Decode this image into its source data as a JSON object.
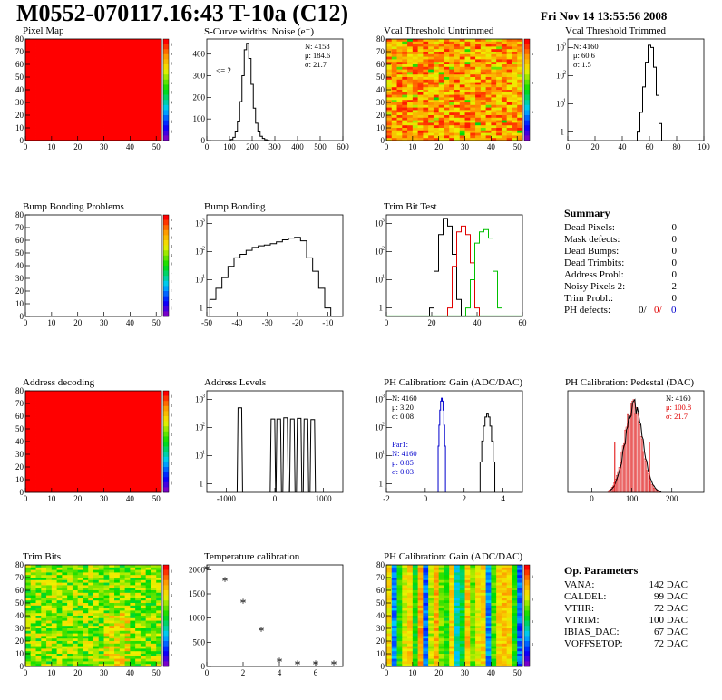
{
  "header": {
    "title": "M0552-070117.16:43 T-10a (C12)",
    "date": "Fri Nov 14 13:55:56 2008"
  },
  "colors": {
    "black": "#000000",
    "red": "#e00000",
    "green": "#00c000",
    "blue": "#0000cc"
  },
  "chart_data": [
    {
      "id": "pixel-map",
      "type": "heatmap",
      "title": "Pixel Map",
      "xlim": [
        0,
        52
      ],
      "ylim": [
        0,
        80
      ],
      "xticks": [
        0,
        10,
        20,
        30,
        40,
        50
      ],
      "yticks": [
        0,
        10,
        20,
        30,
        40,
        50,
        60,
        70,
        80
      ],
      "fill": "uniform-max",
      "zlim": [
        0,
        10
      ],
      "zticks": [
        "1",
        "2",
        "3",
        "4",
        "5",
        "6",
        "7",
        "8",
        "9",
        "10"
      ]
    },
    {
      "id": "scurve-noise",
      "type": "line",
      "title": "S-Curve widths: Noise (e⁻)",
      "xlim": [
        0,
        600
      ],
      "ylim": [
        0,
        470
      ],
      "xticks": [
        0,
        100,
        200,
        300,
        400,
        500,
        600
      ],
      "yticks": [
        0,
        100,
        200,
        300,
        400
      ],
      "x": [
        110,
        120,
        130,
        140,
        150,
        160,
        170,
        180,
        190,
        200,
        210,
        220,
        230,
        240,
        250,
        260,
        270
      ],
      "y": [
        5,
        15,
        40,
        90,
        180,
        300,
        420,
        450,
        380,
        260,
        150,
        80,
        40,
        20,
        10,
        4,
        1
      ],
      "stats": {
        "entries": "N: 4158",
        "mean": "μ: 184.6",
        "sigma": "σ: 21.7"
      },
      "annotation": "<= 2"
    },
    {
      "id": "vcal-untrimmed",
      "type": "heatmap",
      "title": "Vcal Threshold Untrimmed",
      "xlim": [
        0,
        52
      ],
      "ylim": [
        0,
        80
      ],
      "xticks": [
        0,
        10,
        20,
        30,
        40,
        50
      ],
      "yticks": [
        0,
        10,
        20,
        30,
        40,
        50,
        60,
        70,
        80
      ],
      "fill": "noisy-high",
      "zlim": [
        0,
        130
      ],
      "zticks": [
        "60",
        "80",
        "100"
      ]
    },
    {
      "id": "vcal-trimmed",
      "type": "line",
      "title": "Vcal Threshold Trimmed",
      "xlim": [
        0,
        100
      ],
      "ylim": [
        0.5,
        2000
      ],
      "log_y": true,
      "xticks": [
        0,
        20,
        40,
        60,
        80,
        100
      ],
      "x": [
        52,
        54,
        56,
        58,
        60,
        62,
        64,
        66,
        68
      ],
      "y": [
        1,
        5,
        40,
        300,
        1200,
        1000,
        200,
        20,
        2
      ],
      "stats": {
        "entries": "N: 4160",
        "mean": "μ: 60.6",
        "sigma": "σ:  1.5"
      }
    },
    {
      "id": "bump-problems",
      "type": "heatmap",
      "title": "Bump Bonding Problems",
      "xlim": [
        0,
        52
      ],
      "ylim": [
        0,
        80
      ],
      "xticks": [
        0,
        10,
        20,
        30,
        40,
        50
      ],
      "yticks": [
        0,
        10,
        20,
        30,
        40,
        50,
        60,
        70,
        80
      ],
      "fill": "empty",
      "zlim": [
        -5,
        5
      ],
      "zticks": [
        "-5",
        "-4",
        "-3",
        "-2",
        "-1",
        "0",
        "1",
        "2",
        "3",
        "4",
        "5"
      ]
    },
    {
      "id": "bump-bonding",
      "type": "line",
      "title": "Bump Bonding",
      "xlim": [
        -50,
        -5
      ],
      "ylim": [
        0.5,
        2000
      ],
      "log_y": true,
      "xticks": [
        -50,
        -40,
        -30,
        -20,
        -10
      ],
      "x": [
        -48,
        -46,
        -44,
        -42,
        -40,
        -38,
        -36,
        -34,
        -32,
        -30,
        -28,
        -26,
        -24,
        -22,
        -20,
        -18,
        -16,
        -14,
        -12,
        -10
      ],
      "y": [
        2,
        5,
        12,
        30,
        60,
        80,
        110,
        140,
        160,
        170,
        190,
        220,
        260,
        300,
        320,
        240,
        60,
        20,
        5,
        1
      ]
    },
    {
      "id": "trim-bit-test",
      "type": "line",
      "title": "Trim Bit Test",
      "xlim": [
        0,
        60
      ],
      "ylim": [
        0.5,
        2000
      ],
      "log_y": true,
      "xticks": [
        0,
        20,
        40,
        60
      ],
      "series": [
        {
          "color": "black",
          "x": [
            20,
            22,
            24,
            26,
            28,
            30,
            32
          ],
          "y": [
            1,
            20,
            400,
            1500,
            800,
            80,
            2
          ]
        },
        {
          "color": "red",
          "x": [
            28,
            30,
            32,
            34,
            36,
            38,
            40
          ],
          "y": [
            1,
            30,
            500,
            800,
            400,
            40,
            1
          ]
        },
        {
          "color": "green",
          "x": [
            36,
            38,
            40,
            42,
            44,
            46,
            48,
            50
          ],
          "y": [
            1,
            10,
            200,
            500,
            600,
            300,
            20,
            1
          ]
        }
      ]
    },
    {
      "id": "address-decoding",
      "type": "heatmap",
      "title": "Address decoding",
      "xlim": [
        0,
        52
      ],
      "ylim": [
        0,
        80
      ],
      "xticks": [
        0,
        10,
        20,
        30,
        40,
        50
      ],
      "yticks": [
        0,
        10,
        20,
        30,
        40,
        50,
        60,
        70,
        80
      ],
      "fill": "uniform-max",
      "zlim": [
        0,
        1
      ],
      "zticks": [
        "0.1",
        "0.2",
        "0.3",
        "0.4",
        "0.5",
        "0.6",
        "0.7",
        "0.8",
        "0.9",
        "1"
      ]
    },
    {
      "id": "address-levels",
      "type": "line",
      "title": "Address Levels",
      "xlim": [
        -1400,
        1400
      ],
      "ylim": [
        0.5,
        2000
      ],
      "log_y": true,
      "xticks": [
        -1000,
        0,
        1000
      ],
      "peaks_x": [
        -720,
        -40,
        80,
        220,
        360,
        500,
        640,
        780
      ],
      "peaks_y": [
        500,
        200,
        200,
        220,
        200,
        210,
        200,
        190
      ]
    },
    {
      "id": "ph-gain",
      "type": "line",
      "title": "PH Calibration: Gain (ADC/DAC)",
      "xlim": [
        -2,
        5
      ],
      "ylim": [
        0.5,
        2000
      ],
      "log_y": true,
      "xticks": [
        -2,
        0,
        2,
        4
      ],
      "series": [
        {
          "color": "blue",
          "center": 0.85,
          "width": 0.06,
          "peak": 1100
        },
        {
          "color": "black",
          "center": 3.2,
          "width": 0.12,
          "peak": 300
        }
      ],
      "stats": {
        "entries": "N: 4160",
        "mean": "μ: 3.20",
        "sigma": "σ: 0.08"
      },
      "stats2": {
        "title": "Par1:",
        "entries": "N: 4160",
        "mean": "μ: 0.85",
        "sigma": "σ: 0.03"
      }
    },
    {
      "id": "ph-pedestal",
      "type": "line",
      "title": "PH Calibration: Pedestal (DAC)",
      "xlim": [
        -60,
        280
      ],
      "ylim": [
        0,
        1
      ],
      "xticks": [
        0,
        100,
        200
      ],
      "center": 100.8,
      "sigma_value": 21.7,
      "stats": {
        "entries": "N: 4160",
        "mean": "μ: 100.8",
        "sigma": "σ: 21.7"
      }
    },
    {
      "id": "trim-bits",
      "type": "heatmap",
      "title": "Trim Bits",
      "xlim": [
        0,
        52
      ],
      "ylim": [
        0,
        80
      ],
      "xticks": [
        0,
        10,
        20,
        30,
        40,
        50
      ],
      "yticks": [
        0,
        10,
        20,
        30,
        40,
        50,
        60,
        70,
        80
      ],
      "fill": "noisy-mid",
      "zlim": [
        0,
        16
      ],
      "zticks": [
        "2",
        "4",
        "6",
        "8",
        "10",
        "12",
        "14",
        "16"
      ]
    },
    {
      "id": "temperature",
      "type": "scatter",
      "title": "Temperature calibration",
      "xlim": [
        0,
        7.5
      ],
      "ylim": [
        0,
        2100
      ],
      "xticks": [
        0,
        2,
        4,
        6
      ],
      "yticks": [
        0,
        500,
        1000,
        1500,
        2000
      ],
      "x": [
        0,
        1,
        2,
        3,
        4,
        5,
        6,
        7
      ],
      "y": [
        2000,
        1750,
        1300,
        720,
        80,
        30,
        30,
        30
      ]
    },
    {
      "id": "ph-gain-map",
      "type": "heatmap",
      "title": "PH Calibration: Gain (ADC/DAC)",
      "xlim": [
        0,
        52
      ],
      "ylim": [
        0,
        80
      ],
      "xticks": [
        0,
        10,
        20,
        30,
        40,
        50
      ],
      "yticks": [
        0,
        10,
        20,
        30,
        40,
        50,
        60,
        70,
        80
      ],
      "fill": "columns",
      "zlim": [
        2.7,
        3.6
      ],
      "zticks": [
        "2.8",
        "3",
        "3.2",
        "3.4"
      ]
    }
  ],
  "summary": {
    "title": "Summary",
    "rows": [
      {
        "label": "Dead Pixels:",
        "value": "0"
      },
      {
        "label": "Mask defects:",
        "value": "0"
      },
      {
        "label": "Dead Bumps:",
        "value": "0"
      },
      {
        "label": "Dead Trimbits:",
        "value": "0"
      },
      {
        "label": "Address Probl:",
        "value": "0"
      },
      {
        "label": "Noisy Pixels 2:",
        "value": "2"
      },
      {
        "label": "Trim Probl.:",
        "value": "0"
      }
    ],
    "ph_defects": {
      "label": "PH defects:",
      "v1": "0/",
      "v2": "0/",
      "v3": "0"
    }
  },
  "op_params": {
    "title": "Op. Parameters",
    "rows": [
      {
        "label": "VANA:",
        "value": "142 DAC"
      },
      {
        "label": "CALDEL:",
        "value": "99 DAC"
      },
      {
        "label": "VTHR:",
        "value": "72 DAC"
      },
      {
        "label": "VTRIM:",
        "value": "100 DAC"
      },
      {
        "label": "IBIAS_DAC:",
        "value": "67 DAC"
      },
      {
        "label": "VOFFSETOP:",
        "value": "72 DAC"
      }
    ]
  }
}
